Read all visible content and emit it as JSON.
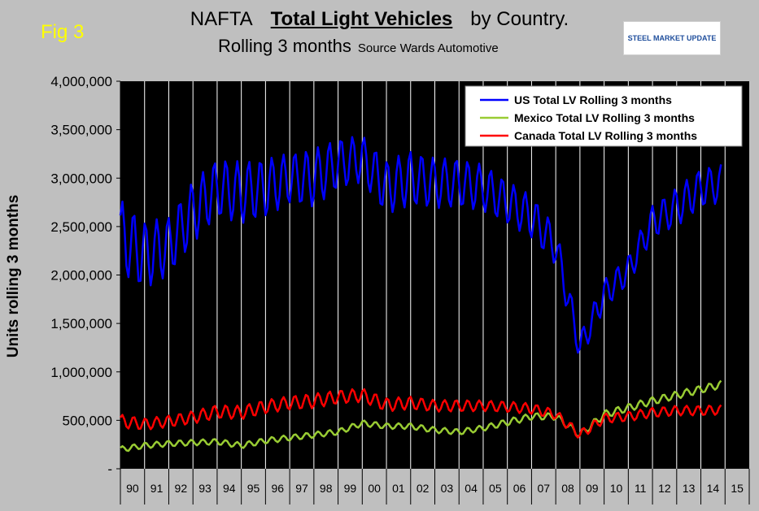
{
  "figure_label": "Fig 3",
  "title_line1": {
    "prefix": "NAFTA",
    "main": "Total Light Vehicles",
    "suffix": "by Country."
  },
  "title_line2": {
    "main": "Rolling 3 months",
    "source": "Source Wards Automotive"
  },
  "logo_text": "STEEL MARKET UPDATE",
  "chart_data": {
    "type": "line",
    "ylabel": "Units rolling 3 months",
    "ylim": [
      0,
      4000000
    ],
    "yticks": [
      0,
      500000,
      1000000,
      1500000,
      2000000,
      2500000,
      3000000,
      3500000,
      4000000
    ],
    "ytick_labels": [
      "-",
      "500,000",
      "1,000,000",
      "1,500,000",
      "2,000,000",
      "2,500,000",
      "3,000,000",
      "3,500,000",
      "4,000,000"
    ],
    "x_categories": [
      "90",
      "91",
      "92",
      "93",
      "94",
      "95",
      "96",
      "97",
      "98",
      "99",
      "00",
      "01",
      "02",
      "03",
      "04",
      "05",
      "06",
      "07",
      "08",
      "09",
      "10",
      "11",
      "12",
      "13",
      "14",
      "15"
    ],
    "x_start_year": 1990,
    "legend_position": "top-right",
    "grid": "vertical year separators",
    "series": [
      {
        "name": "US Total LV Rolling 3 months",
        "color": "#0000ff",
        "base": [
          2400000,
          2200000,
          2300000,
          2650000,
          2900000,
          2850000,
          2900000,
          3000000,
          3000000,
          3150000,
          3200000,
          2900000,
          3000000,
          2950000,
          2950000,
          2900000,
          2750000,
          2600000,
          2300000,
          1250000,
          1800000,
          2050000,
          2550000,
          2700000,
          2900000,
          2950000
        ],
        "amp": [
          380000,
          350000,
          300000,
          320000,
          300000,
          320000,
          300000,
          260000,
          300000,
          260000,
          240000,
          280000,
          280000,
          260000,
          250000,
          240000,
          220000,
          220000,
          200000,
          150000,
          150000,
          150000,
          170000,
          200000,
          200000,
          200000
        ]
      },
      {
        "name": "Mexico Total LV Rolling 3 months",
        "color": "#99cc33",
        "base": [
          200000,
          240000,
          260000,
          270000,
          280000,
          240000,
          290000,
          320000,
          350000,
          380000,
          470000,
          440000,
          440000,
          400000,
          380000,
          420000,
          480000,
          540000,
          540000,
          350000,
          560000,
          630000,
          700000,
          760000,
          820000,
          880000
        ],
        "amp": [
          30000,
          30000,
          30000,
          30000,
          30000,
          30000,
          30000,
          30000,
          30000,
          30000,
          30000,
          30000,
          30000,
          30000,
          30000,
          30000,
          35000,
          35000,
          35000,
          40000,
          40000,
          40000,
          40000,
          40000,
          40000,
          40000
        ]
      },
      {
        "name": "Canada Total LV Rolling 3 months",
        "color": "#ff0000",
        "base": [
          490000,
          460000,
          490000,
          530000,
          590000,
          580000,
          640000,
          680000,
          700000,
          740000,
          760000,
          660000,
          680000,
          650000,
          650000,
          650000,
          640000,
          620000,
          560000,
          350000,
          520000,
          540000,
          580000,
          600000,
          600000,
          610000
        ],
        "amp": [
          70000,
          60000,
          60000,
          65000,
          70000,
          70000,
          70000,
          70000,
          75000,
          70000,
          70000,
          70000,
          65000,
          60000,
          60000,
          55000,
          55000,
          55000,
          50000,
          50000,
          50000,
          50000,
          50000,
          50000,
          50000,
          50000
        ]
      }
    ]
  }
}
